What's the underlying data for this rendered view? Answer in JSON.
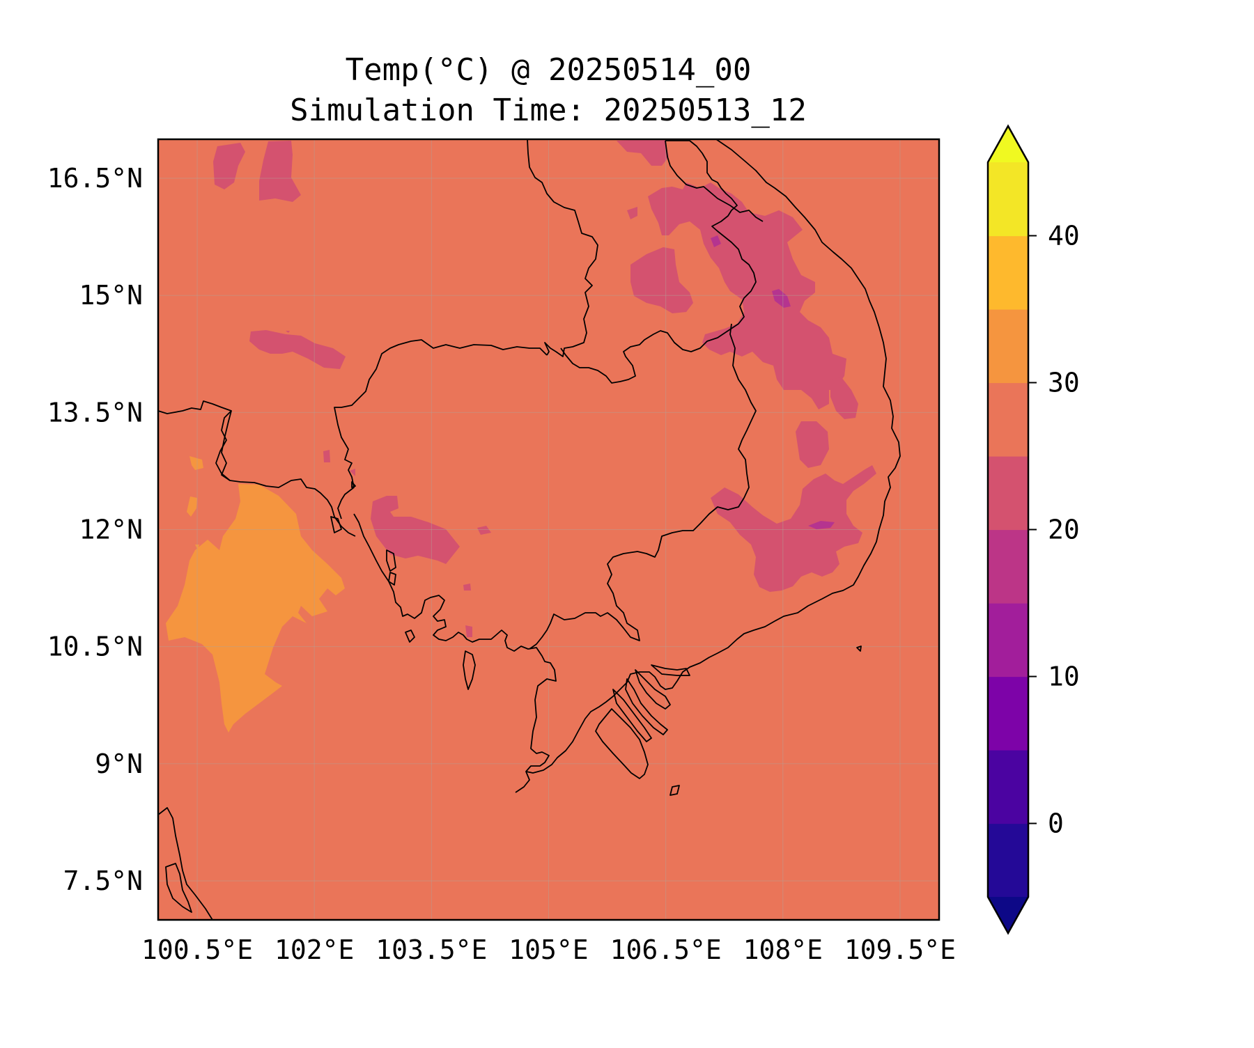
{
  "title": {
    "line1": "Temp(°C) @ 20250514_00",
    "line2": "Simulation Time: 20250513_12"
  },
  "map": {
    "lon_range": [
      100.0,
      110.0
    ],
    "lat_range": [
      7.0,
      17.0
    ],
    "background_color": "#ea7559",
    "x_ticks": [
      {
        "value": 100.5,
        "label": "100.5°E"
      },
      {
        "value": 102.0,
        "label": "102°E"
      },
      {
        "value": 103.5,
        "label": "103.5°E"
      },
      {
        "value": 105.0,
        "label": "105°E"
      },
      {
        "value": 106.5,
        "label": "106.5°E"
      },
      {
        "value": 108.0,
        "label": "108°E"
      },
      {
        "value": 109.5,
        "label": "109.5°E"
      }
    ],
    "y_ticks": [
      {
        "value": 16.5,
        "label": "16.5°N"
      },
      {
        "value": 15.0,
        "label": "15°N"
      },
      {
        "value": 13.5,
        "label": "13.5°N"
      },
      {
        "value": 12.0,
        "label": "12°N"
      },
      {
        "value": 10.5,
        "label": "10.5°N"
      },
      {
        "value": 9.0,
        "label": "9°N"
      },
      {
        "value": 7.5,
        "label": "7.5°N"
      }
    ],
    "gridlines": true,
    "colors": {
      "temp_20_25": "#d4526f",
      "temp_30_35": "#f5953f",
      "temp_15_20": "#b5348f",
      "coastline": "#000000"
    }
  },
  "colorbar": {
    "range": [
      -5,
      45
    ],
    "extend": "both",
    "bins": [
      {
        "from": -5,
        "to": 0,
        "color": "#240997"
      },
      {
        "from": 0,
        "to": 5,
        "color": "#4b03a1"
      },
      {
        "from": 5,
        "to": 10,
        "color": "#7d03a8"
      },
      {
        "from": 10,
        "to": 15,
        "color": "#a21e9b"
      },
      {
        "from": 15,
        "to": 20,
        "color": "#bc3587"
      },
      {
        "from": 20,
        "to": 25,
        "color": "#d4526f"
      },
      {
        "from": 25,
        "to": 30,
        "color": "#ea7559"
      },
      {
        "from": 30,
        "to": 35,
        "color": "#f5953f"
      },
      {
        "from": 35,
        "to": 40,
        "color": "#feb92d"
      },
      {
        "from": 40,
        "to": 45,
        "color": "#f3e626"
      }
    ],
    "under_color": "#0d0887",
    "over_color": "#f0f921",
    "ticks": [
      {
        "value": 0,
        "label": "0"
      },
      {
        "value": 10,
        "label": "10"
      },
      {
        "value": 20,
        "label": "20"
      },
      {
        "value": 30,
        "label": "30"
      },
      {
        "value": 40,
        "label": "40"
      }
    ]
  }
}
